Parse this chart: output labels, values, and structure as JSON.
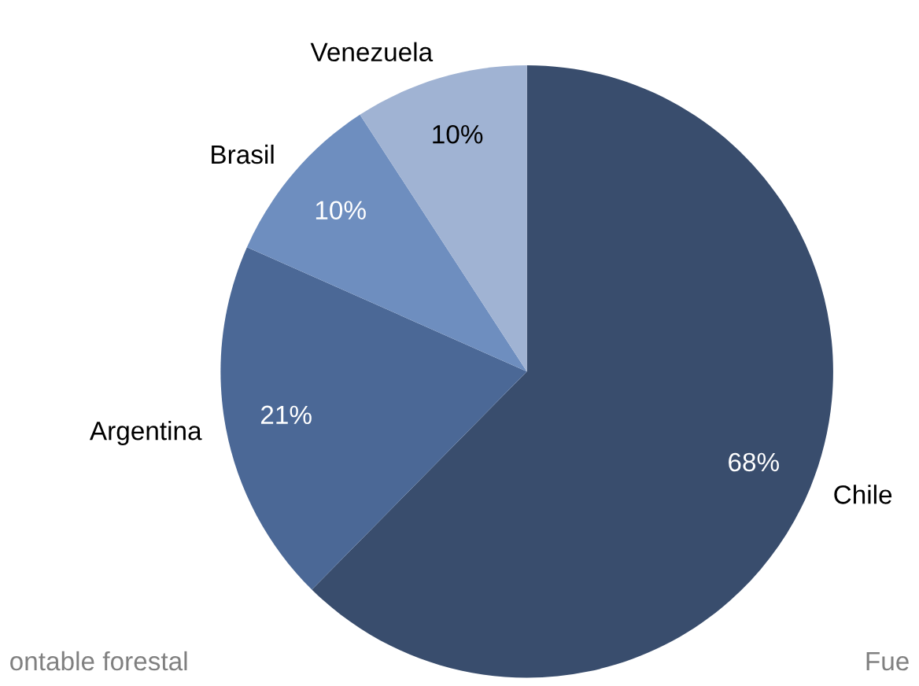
{
  "chart_data": {
    "type": "pie",
    "categories": [
      "Chile",
      "Argentina",
      "Brasil",
      "Venezuela"
    ],
    "values": [
      68,
      21,
      10,
      10
    ],
    "colors": [
      "#394d6d",
      "#4b6896",
      "#6e8ebf",
      "#a0b3d3"
    ],
    "value_labels": [
      "68%",
      "21%",
      "10%",
      "10%"
    ],
    "annotations": [
      "ontable forestal",
      "Fue"
    ]
  }
}
